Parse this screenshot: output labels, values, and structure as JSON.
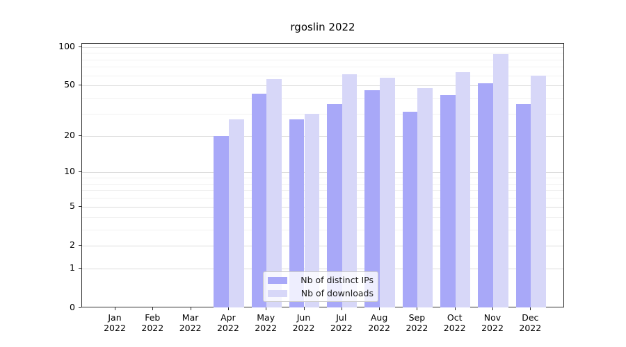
{
  "chart_data": {
    "type": "bar",
    "title": "rgoslin 2022",
    "categories": [
      "Jan\n2022",
      "Feb\n2022",
      "Mar\n2022",
      "Apr\n2022",
      "May\n2022",
      "Jun\n2022",
      "Jul\n2022",
      "Aug\n2022",
      "Sep\n2022",
      "Oct\n2022",
      "Nov\n2022",
      "Dec\n2022"
    ],
    "series": [
      {
        "name": "Nb of distinct IPs",
        "color": "#a8a8f8",
        "values": [
          null,
          null,
          null,
          20,
          43,
          27,
          36,
          46,
          31,
          42,
          52,
          36
        ]
      },
      {
        "name": "Nb of downloads",
        "color": "#d7d7f8",
        "values": [
          null,
          null,
          null,
          27,
          56,
          30,
          61,
          58,
          48,
          64,
          88,
          60
        ]
      }
    ],
    "xlabel": "",
    "ylabel": "",
    "yscale": "log1p",
    "ylim": [
      0,
      106
    ],
    "yticks": [
      0,
      1,
      2,
      5,
      10,
      20,
      50,
      100
    ],
    "minor_gridlines": [
      3,
      4,
      6,
      7,
      8,
      9,
      30,
      40,
      60,
      70,
      80,
      90
    ],
    "grid": "horizontal",
    "legend_position": "inside-bottom-center",
    "colors": {
      "major_grid": "#dcdcdc",
      "minor_grid": "#f1f1f1",
      "spine": "#2b2b2b",
      "background": "#ffffff",
      "text": "#000000"
    }
  }
}
